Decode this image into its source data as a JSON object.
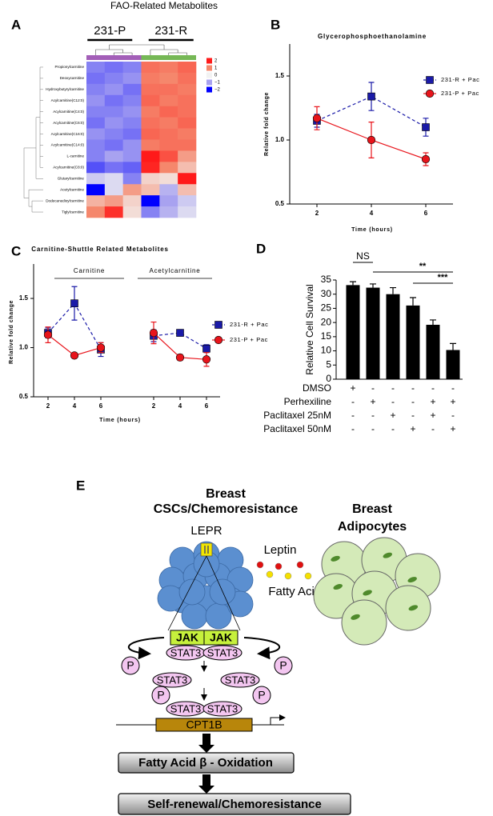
{
  "chart_data": [
    {
      "type": "heatmap",
      "panel": "A",
      "title": "FAO-Related Metabolites",
      "column_groups": [
        "231-P",
        "231-R"
      ],
      "rows": [
        "Propionylcarnitine",
        "Deoxycarnitine",
        "Hydroxybutyrylcarnitine",
        "Acylcarnitine(C12:0)",
        "Acylcarnitine(C4:0)",
        "Acylcarnitine(C6:0)",
        "Acylcarnitine(C16:0)",
        "Acylcarnitine(C14:0)",
        "L-carnitine",
        "Acylcarnitine(C8:0)",
        "Glutarylcarnitine",
        "Acetylcarnitine",
        "Dodecanedioylcarnitine",
        "Tiglylcarnitine"
      ],
      "values": [
        [
          -1.2,
          -1.3,
          -1.2,
          1.2,
          1.1,
          1.3
        ],
        [
          -1.3,
          -1.2,
          -1.1,
          1.1,
          1.0,
          1.2
        ],
        [
          -1.2,
          -1.1,
          -1.3,
          1.2,
          1.2,
          1.1
        ],
        [
          -1.1,
          -1.3,
          -1.2,
          1.3,
          1.1,
          1.2
        ],
        [
          -1.2,
          -1.2,
          -1.1,
          1.1,
          1.3,
          1.2
        ],
        [
          -1.3,
          -1.1,
          -1.2,
          1.2,
          1.1,
          1.3
        ],
        [
          -1.1,
          -1.2,
          -1.3,
          1.3,
          1.2,
          1.1
        ],
        [
          -1.2,
          -1.3,
          -1.1,
          1.1,
          1.2,
          1.2
        ],
        [
          -1.2,
          -1.0,
          -1.1,
          2.0,
          1.5,
          0.8
        ],
        [
          -1.5,
          -1.3,
          -1.4,
          1.9,
          1.0,
          0.5
        ],
        [
          -0.5,
          -0.3,
          -1.2,
          0.3,
          0.2,
          2.0
        ],
        [
          -2.0,
          -0.3,
          0.8,
          0.5,
          -0.8,
          0.5
        ],
        [
          0.6,
          0.8,
          0.3,
          -2.0,
          -1.0,
          -0.5
        ],
        [
          1.0,
          1.8,
          0.2,
          -1.2,
          -0.8,
          -0.3
        ]
      ],
      "colorbar_ticks": [
        2,
        1,
        0,
        {
          "value": -1,
          "label": "−1"
        },
        {
          "value": -2,
          "label": "−2"
        }
      ],
      "colors": [
        "#ff1a1a",
        "#f5876c",
        "#f2f2f2",
        "#a8a2f0",
        "#0000ff"
      ],
      "group_colors": [
        "#a35fb8",
        "#76b856"
      ]
    },
    {
      "type": "line",
      "panel": "B",
      "title": "Glycerophosphoethanolamine",
      "x": [
        2,
        4,
        6
      ],
      "xlim": [
        1,
        7
      ],
      "xticks": [
        2,
        4,
        6
      ],
      "ylim": [
        0.5,
        1.75
      ],
      "yticks": [
        {
          "value": 0.5,
          "label": "0.5"
        },
        {
          "value": 1.0,
          "label": "1.0"
        },
        {
          "value": 1.5,
          "label": "1.5"
        }
      ],
      "xlabel": "Time (hours)",
      "ylabel": "Relative fold change",
      "series": [
        {
          "name": "231-R + Pac",
          "color": "#1a1aa8",
          "marker": "square",
          "dashed": true,
          "values": [
            1.15,
            1.34,
            1.1
          ],
          "errors": [
            0.05,
            0.11,
            0.07
          ]
        },
        {
          "name": "231-P + Pac",
          "color": "#e8141b",
          "marker": "circle",
          "dashed": false,
          "values": [
            1.17,
            1.0,
            0.85
          ],
          "errors": [
            0.09,
            0.14,
            0.05
          ]
        }
      ]
    },
    {
      "type": "line",
      "panel": "C",
      "title": "Carnitine-Shuttle Related Metabolites",
      "categories": [
        "2",
        "4",
        "6",
        null,
        "2",
        "4",
        "6"
      ],
      "groups": [
        "Carnitine",
        "Acetylcarnitine"
      ],
      "ylim": [
        0.5,
        1.85
      ],
      "yticks": [
        {
          "value": 0.5,
          "label": "0.5"
        },
        {
          "value": 1.0,
          "label": "1.0"
        },
        {
          "value": 1.5,
          "label": "1.5"
        }
      ],
      "xlabel": "Time (hours)",
      "ylabel": "Relative fold change",
      "series": [
        {
          "name": "231-R + Pac",
          "color": "#1a1aa8",
          "marker": "square",
          "dashed": true,
          "values": [
            1.15,
            1.45,
            0.98,
            null,
            1.12,
            1.15,
            0.99
          ],
          "errors": [
            0.05,
            0.17,
            0.07,
            null,
            0.06,
            0.03,
            0.04
          ]
        },
        {
          "name": "231-P + Pac",
          "color": "#e8141b",
          "marker": "circle",
          "dashed": false,
          "values": [
            1.13,
            0.92,
            1.0,
            null,
            1.15,
            0.9,
            0.88
          ],
          "errors": [
            0.08,
            0.01,
            0.05,
            null,
            0.11,
            0.03,
            0.07
          ]
        }
      ]
    },
    {
      "type": "bar",
      "panel": "D",
      "ylabel": "Relative Cell Survival",
      "values": [
        33.2,
        32.3,
        30.0,
        26.0,
        19.2,
        10.3
      ],
      "errors": [
        1.2,
        1.3,
        2.3,
        2.8,
        1.7,
        2.3
      ],
      "color": "#000000",
      "ylim": [
        0,
        35
      ],
      "yticks": [
        0,
        5,
        10,
        15,
        20,
        25,
        30,
        35
      ],
      "table_rows": [
        {
          "label": "DMSO",
          "marks": [
            "+",
            "-",
            "-",
            "-",
            "-",
            "-"
          ]
        },
        {
          "label": "Perhexiline",
          "marks": [
            "-",
            "+",
            "-",
            "-",
            "+",
            "+"
          ]
        },
        {
          "label": "Paclitaxel 25nM",
          "marks": [
            "-",
            "-",
            "+",
            "-",
            "+",
            "-"
          ]
        },
        {
          "label": "Paclitaxel 50nM",
          "marks": [
            "-",
            "-",
            "-",
            "+",
            "-",
            "+"
          ]
        }
      ],
      "annotations": [
        "NS",
        "**",
        "***"
      ]
    }
  ],
  "diagram": {
    "panel": "E",
    "cell_title": [
      "Breast",
      "CSCs/Chemoresistance"
    ],
    "adipocyte_title": [
      "Breast",
      "Adipocytes"
    ],
    "receptor": "LEPR",
    "ligands": [
      "Leptin",
      "Fatty Acids"
    ],
    "kinases": [
      "JAK",
      "JAK"
    ],
    "stat3": [
      "STAT3",
      "STAT3",
      "STAT3",
      "STAT3",
      "STAT3",
      "STAT3"
    ],
    "phospho": [
      "P",
      "P",
      "P",
      "P"
    ],
    "gene": "CPT1B",
    "steps": [
      "Fatty Acid β - Oxidation",
      "Self-renewal/Chemoresistance"
    ]
  }
}
